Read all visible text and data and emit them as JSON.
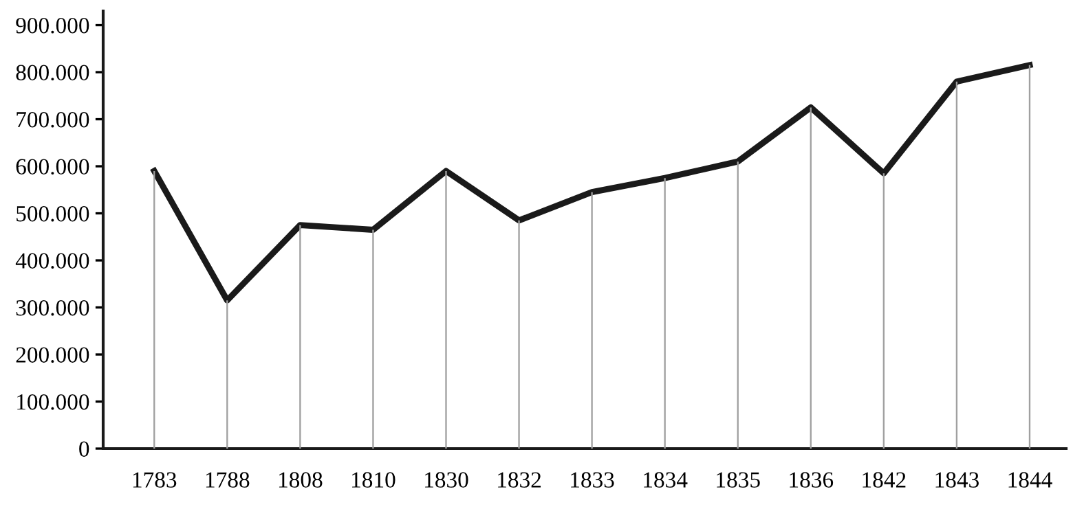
{
  "chart_data": {
    "type": "line",
    "categories": [
      "1783",
      "1788",
      "1808",
      "1810",
      "1830",
      "1832",
      "1833",
      "1834",
      "1835",
      "1836",
      "1842",
      "1843",
      "1844"
    ],
    "series": [
      {
        "type": "bar",
        "color": "#a0a0a0",
        "values": [
          590000,
          315000,
          475000,
          465000,
          590000,
          485000,
          545000,
          575000,
          610000,
          725000,
          585000,
          780000,
          815000
        ]
      },
      {
        "color": "#1a1a1a",
        "values": [
          590000,
          315000,
          475000,
          465000,
          590000,
          485000,
          545000,
          575000,
          610000,
          725000,
          585000,
          780000,
          815000
        ]
      }
    ],
    "ylim": [
      0,
      930000
    ],
    "yticks": [
      0,
      {
        "value": 100000,
        "label": "100.000"
      },
      {
        "value": 200000,
        "label": "200.000"
      },
      {
        "value": 300000,
        "label": "300.000"
      },
      {
        "value": 400000,
        "label": "400.000"
      },
      {
        "value": 500000,
        "label": "500.000"
      },
      {
        "value": 600000,
        "label": "600.000"
      },
      {
        "value": 700000,
        "label": "700.000"
      },
      {
        "value": 800000,
        "label": "800.000"
      },
      {
        "value": 900000,
        "label": "900.000"
      }
    ],
    "legend": false,
    "marker": "none",
    "line_style": "solid"
  }
}
